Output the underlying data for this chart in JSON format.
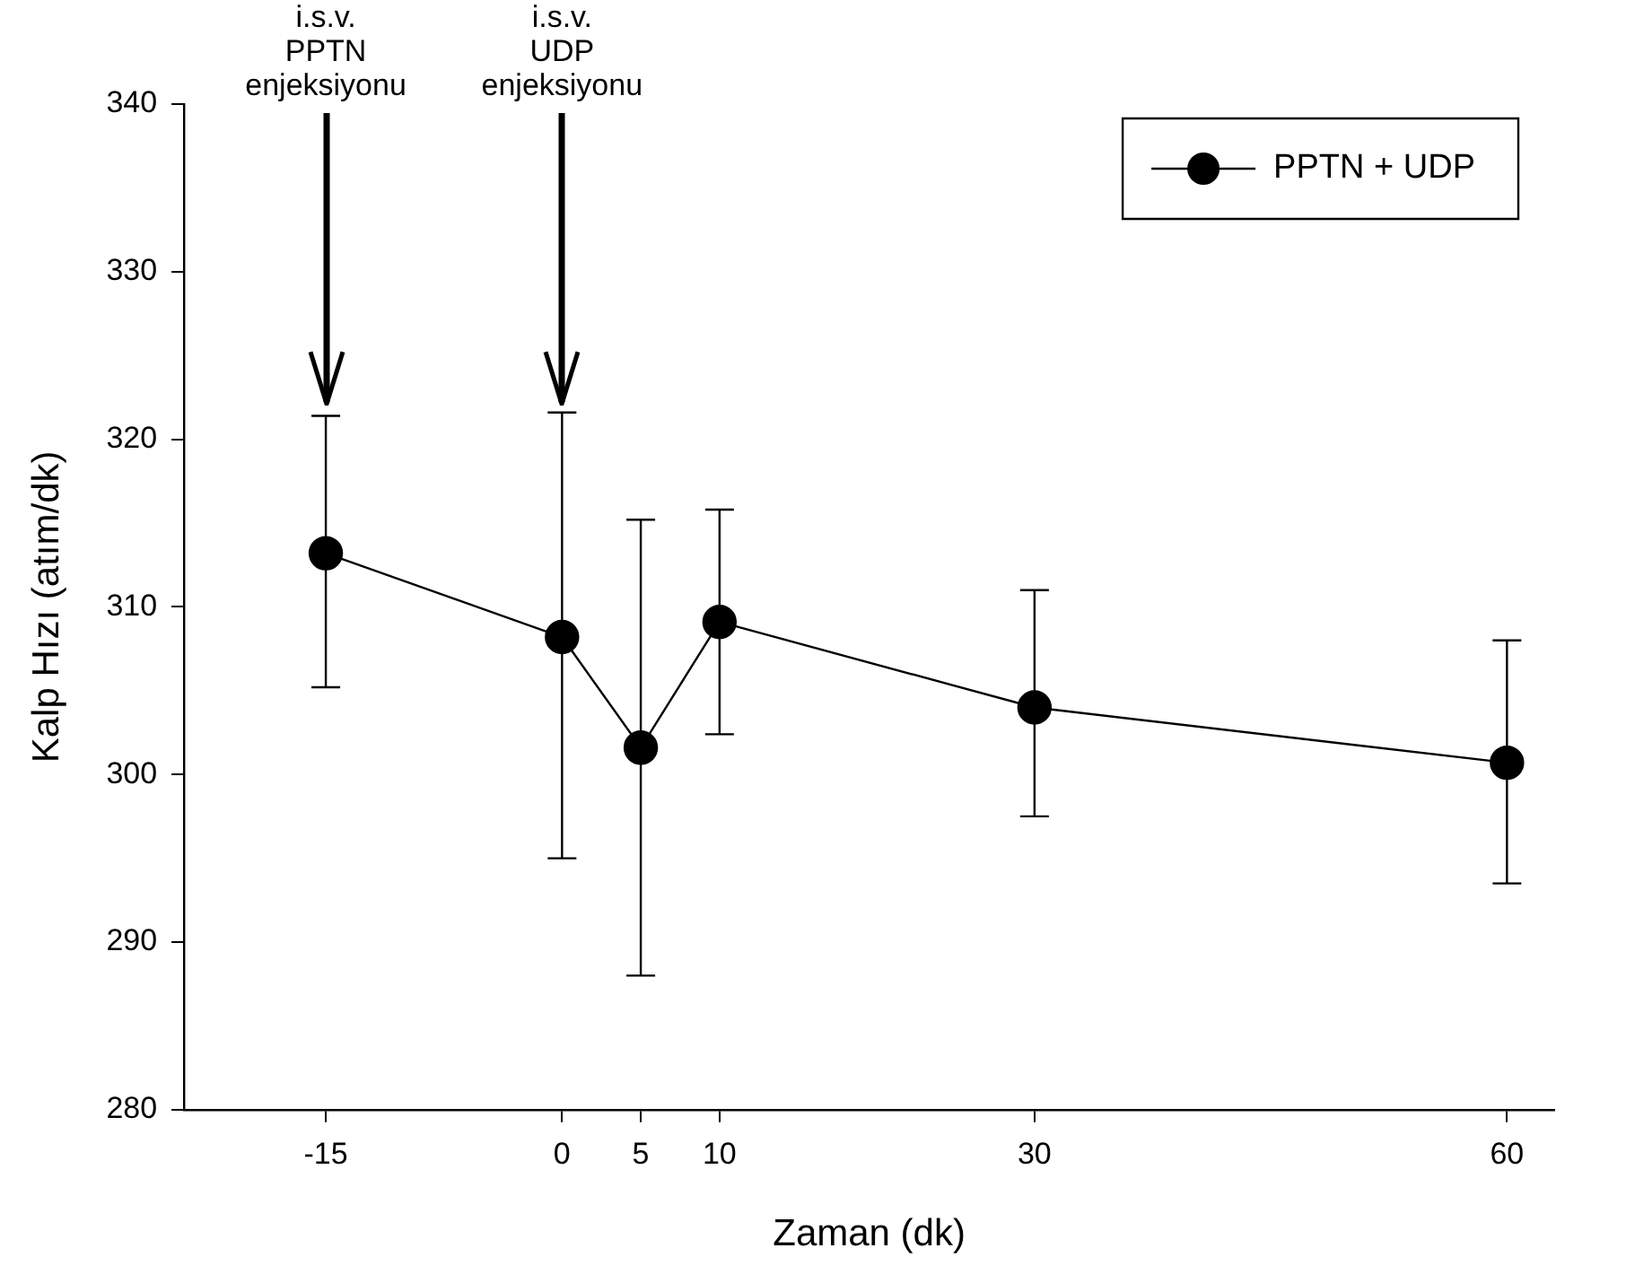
{
  "chart_data": {
    "type": "line",
    "xlabel": "Zaman (dk)",
    "ylabel": "Kalp Hızı (atım/dk)",
    "x": [
      -15,
      0,
      5,
      10,
      30,
      60
    ],
    "series": [
      {
        "name": "PPTN + UDP",
        "color": "#000000",
        "values": [
          313.2,
          308.2,
          301.6,
          309.1,
          304.0,
          300.7
        ],
        "errors": [
          [
            305.2,
            321.4
          ],
          [
            295.0,
            321.6
          ],
          [
            288.0,
            315.2
          ],
          [
            302.4,
            315.8
          ],
          [
            297.5,
            311.0
          ],
          [
            293.5,
            308.0
          ]
        ]
      }
    ],
    "xlim": [
      -24,
      63
    ],
    "xticks": [
      -15,
      0,
      5,
      10,
      30,
      60
    ],
    "ylim": [
      280,
      340
    ],
    "yticks": [
      280,
      290,
      300,
      310,
      320,
      330,
      340
    ],
    "grid": false,
    "legend": "top right",
    "marker": "circle",
    "line_style": "solid",
    "annotations": [
      {
        "text": "i.s.v.\nPPTN\nenjeksiyonu",
        "x": -15
      },
      {
        "text": "i.s.v.\nUDP\nenjeksiyonu",
        "x": 0
      }
    ]
  }
}
